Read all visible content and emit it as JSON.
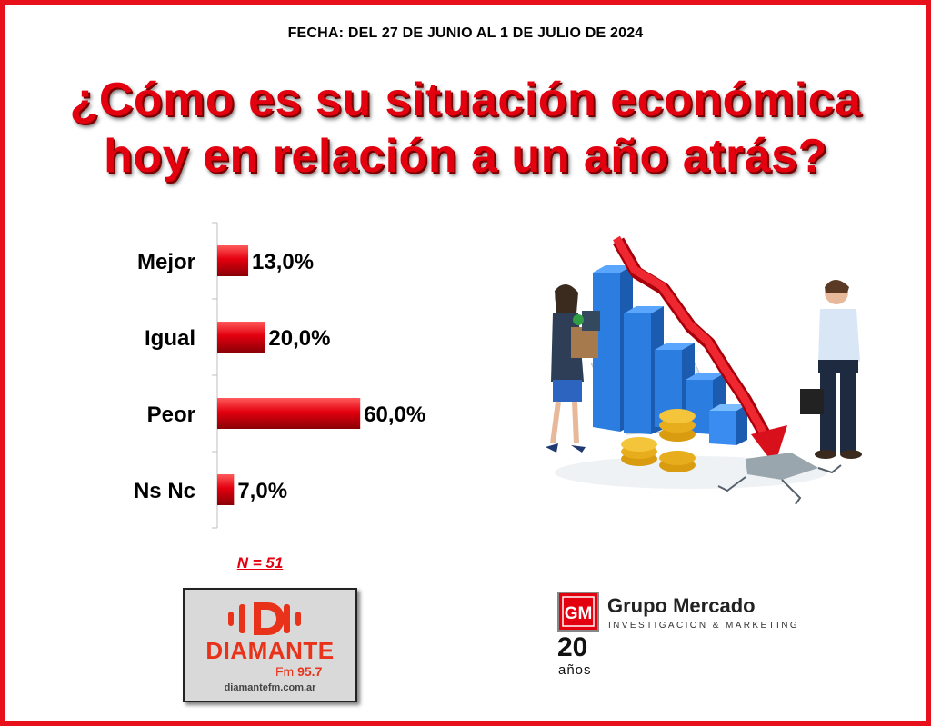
{
  "header": {
    "date": "FECHA: DEL 27 DE JUNIO AL 1 DE JULIO DE  2024",
    "title_line1": "¿Cómo es su situación económica",
    "title_line2": "hoy en relación a un año atrás?"
  },
  "chart_data": {
    "type": "bar",
    "orientation": "horizontal",
    "categories": [
      "Mejor",
      "Igual",
      "Peor",
      "Ns Nc"
    ],
    "values": [
      13.0,
      20.0,
      60.0,
      7.0
    ],
    "value_labels": [
      "13,0%",
      "20,0%",
      "60,0%",
      "7,0%"
    ],
    "xlim": [
      0,
      100
    ],
    "grid": false,
    "bar_color": "#e3000f"
  },
  "sample": {
    "label": "N = 51"
  },
  "radio_logo": {
    "name": "DIAMANTE",
    "freq_prefix": "Fm",
    "freq_value": "95.7",
    "url": "diamantefm.com.ar",
    "color": "#e8321a"
  },
  "company_logo": {
    "name": "Grupo Mercado",
    "subtitle": "INVESTIGACION & MARKETING",
    "anniversary_number": "20",
    "anniversary_word": "años",
    "badge_text": "GM",
    "color": "#e3000f"
  },
  "colors": {
    "border": "#e8101a",
    "title": "#e3000f"
  }
}
